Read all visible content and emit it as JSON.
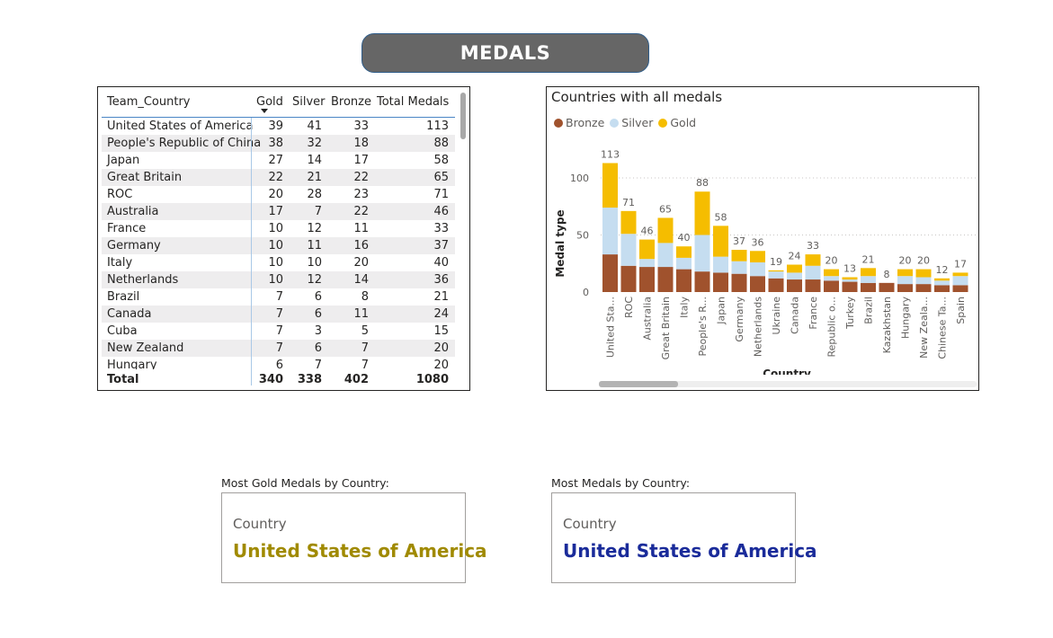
{
  "header": {
    "title": "MEDALS"
  },
  "table": {
    "columns": [
      "Team_Country",
      "Gold",
      "Silver",
      "Bronze",
      "Total Medals"
    ],
    "rows": [
      [
        "United States of America",
        "39",
        "41",
        "33",
        "113"
      ],
      [
        "People's Republic of China",
        "38",
        "32",
        "18",
        "88"
      ],
      [
        "Japan",
        "27",
        "14",
        "17",
        "58"
      ],
      [
        "Great Britain",
        "22",
        "21",
        "22",
        "65"
      ],
      [
        "ROC",
        "20",
        "28",
        "23",
        "71"
      ],
      [
        "Australia",
        "17",
        "7",
        "22",
        "46"
      ],
      [
        "France",
        "10",
        "12",
        "11",
        "33"
      ],
      [
        "Germany",
        "10",
        "11",
        "16",
        "37"
      ],
      [
        "Italy",
        "10",
        "10",
        "20",
        "40"
      ],
      [
        "Netherlands",
        "10",
        "12",
        "14",
        "36"
      ],
      [
        "Brazil",
        "7",
        "6",
        "8",
        "21"
      ],
      [
        "Canada",
        "7",
        "6",
        "11",
        "24"
      ],
      [
        "Cuba",
        "7",
        "3",
        "5",
        "15"
      ],
      [
        "New Zealand",
        "7",
        "6",
        "7",
        "20"
      ],
      [
        "Hungary",
        "6",
        "7",
        "7",
        "20"
      ]
    ],
    "total": [
      "Total",
      "340",
      "338",
      "402",
      "1080"
    ]
  },
  "chart": {
    "legend": [
      {
        "label": "Bronze",
        "color": "#a0522d"
      },
      {
        "label": "Silver",
        "color": "#c5ddf0"
      },
      {
        "label": "Gold",
        "color": "#f5bd00"
      }
    ]
  },
  "chart_data": {
    "type": "bar",
    "stacked": true,
    "title": "Countries with all medals",
    "xlabel": "Country",
    "ylabel": "Medal type",
    "ylim": [
      0,
      125
    ],
    "yticks": [
      0,
      50,
      100
    ],
    "grid": true,
    "legend_position": "top-left",
    "categories": [
      "United Sta...",
      "ROC",
      "Australia",
      "Great Britain",
      "Italy",
      "People's R...",
      "Japan",
      "Germany",
      "Netherlands",
      "Ukraine",
      "Canada",
      "France",
      "Republic o...",
      "Turkey",
      "Brazil",
      "Kazakhstan",
      "Hungary",
      "New Zeala...",
      "Chinese Ta...",
      "Spain"
    ],
    "series": [
      {
        "name": "Bronze",
        "color": "#a0522d",
        "values": [
          33,
          23,
          22,
          22,
          20,
          18,
          17,
          16,
          14,
          12,
          11,
          11,
          10,
          9,
          8,
          8,
          7,
          7,
          6,
          6
        ]
      },
      {
        "name": "Silver",
        "color": "#c5ddf0",
        "values": [
          41,
          28,
          7,
          21,
          10,
          32,
          14,
          11,
          12,
          6,
          6,
          12,
          4,
          2,
          6,
          0,
          7,
          6,
          4,
          8
        ]
      },
      {
        "name": "Gold",
        "color": "#f5bd00",
        "values": [
          39,
          20,
          17,
          22,
          10,
          38,
          27,
          10,
          10,
          1,
          7,
          10,
          6,
          2,
          7,
          0,
          6,
          7,
          2,
          3
        ]
      }
    ],
    "totals": [
      113,
      71,
      46,
      65,
      40,
      88,
      58,
      37,
      36,
      19,
      24,
      33,
      20,
      13,
      21,
      8,
      20,
      20,
      12,
      17
    ]
  },
  "cards": [
    {
      "caption": "Most Gold Medals by Country:",
      "label": "Country",
      "value": "United States of America",
      "color": "#a08a00"
    },
    {
      "caption": "Most Medals by Country:",
      "label": "Country",
      "value": "United States of America",
      "color": "#1a2b9a"
    }
  ]
}
